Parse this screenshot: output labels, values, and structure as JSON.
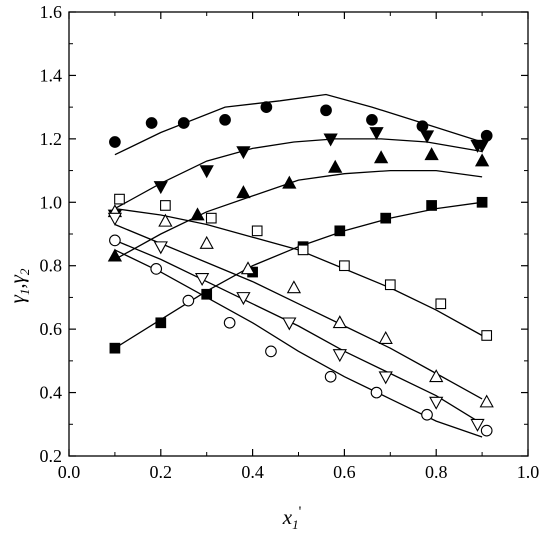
{
  "chart_data": {
    "type": "scatter",
    "xlabel": "x",
    "xlabel_sub": "1",
    "xlabel_sup": "'",
    "ylabel": "γ",
    "ylabel_sub1": "1",
    "ylabel_sep": ",",
    "ylabel_sub2": "2",
    "xlim": [
      0.0,
      1.0
    ],
    "ylim": [
      0.2,
      1.6
    ],
    "xticks": [
      "0.0",
      "0.2",
      "0.4",
      "0.6",
      "0.8",
      "1.0"
    ],
    "yticks": [
      "0.2",
      "0.4",
      "0.6",
      "0.8",
      "1.0",
      "1.2",
      "1.4",
      "1.6"
    ],
    "grid": false,
    "series": [
      {
        "marker": "circle",
        "filled": true,
        "points": [
          [
            0.1,
            1.19
          ],
          [
            0.18,
            1.25
          ],
          [
            0.25,
            1.25
          ],
          [
            0.34,
            1.26
          ],
          [
            0.43,
            1.3
          ],
          [
            0.56,
            1.29
          ],
          [
            0.66,
            1.26
          ],
          [
            0.77,
            1.24
          ],
          [
            0.91,
            1.21
          ]
        ],
        "fit": [
          [
            0.1,
            1.15
          ],
          [
            0.2,
            1.22
          ],
          [
            0.34,
            1.3
          ],
          [
            0.46,
            1.32
          ],
          [
            0.56,
            1.34
          ],
          [
            0.66,
            1.3
          ],
          [
            0.77,
            1.25
          ],
          [
            0.9,
            1.19
          ]
        ]
      },
      {
        "marker": "triangle-down",
        "filled": true,
        "points": [
          [
            0.1,
            0.96
          ],
          [
            0.2,
            1.05
          ],
          [
            0.3,
            1.1
          ],
          [
            0.38,
            1.16
          ],
          [
            0.57,
            1.2
          ],
          [
            0.67,
            1.22
          ],
          [
            0.78,
            1.21
          ],
          [
            0.89,
            1.18
          ],
          [
            0.9,
            1.18
          ]
        ],
        "fit": [
          [
            0.1,
            0.98
          ],
          [
            0.2,
            1.06
          ],
          [
            0.3,
            1.13
          ],
          [
            0.4,
            1.17
          ],
          [
            0.49,
            1.19
          ],
          [
            0.58,
            1.2
          ],
          [
            0.68,
            1.2
          ],
          [
            0.78,
            1.19
          ],
          [
            0.9,
            1.16
          ]
        ]
      },
      {
        "marker": "triangle-up",
        "filled": true,
        "points": [
          [
            0.1,
            0.83
          ],
          [
            0.28,
            0.96
          ],
          [
            0.38,
            1.03
          ],
          [
            0.48,
            1.06
          ],
          [
            0.58,
            1.11
          ],
          [
            0.68,
            1.14
          ],
          [
            0.79,
            1.15
          ],
          [
            0.9,
            1.13
          ]
        ],
        "fit": [
          [
            0.1,
            0.82
          ],
          [
            0.2,
            0.9
          ],
          [
            0.3,
            0.97
          ],
          [
            0.4,
            1.02
          ],
          [
            0.5,
            1.07
          ],
          [
            0.6,
            1.09
          ],
          [
            0.7,
            1.1
          ],
          [
            0.8,
            1.1
          ],
          [
            0.9,
            1.08
          ]
        ]
      },
      {
        "marker": "square",
        "filled": true,
        "points": [
          [
            0.1,
            0.54
          ],
          [
            0.2,
            0.62
          ],
          [
            0.3,
            0.71
          ],
          [
            0.4,
            0.78
          ],
          [
            0.51,
            0.86
          ],
          [
            0.59,
            0.91
          ],
          [
            0.69,
            0.95
          ],
          [
            0.79,
            0.99
          ],
          [
            0.9,
            1.0
          ]
        ],
        "fit": [
          [
            0.1,
            0.54
          ],
          [
            0.2,
            0.63
          ],
          [
            0.3,
            0.72
          ],
          [
            0.4,
            0.8
          ],
          [
            0.5,
            0.86
          ],
          [
            0.6,
            0.91
          ],
          [
            0.7,
            0.95
          ],
          [
            0.8,
            0.98
          ],
          [
            0.9,
            1.0
          ]
        ]
      },
      {
        "marker": "square",
        "filled": false,
        "points": [
          [
            0.11,
            1.01
          ],
          [
            0.21,
            0.99
          ],
          [
            0.31,
            0.95
          ],
          [
            0.41,
            0.91
          ],
          [
            0.51,
            0.85
          ],
          [
            0.6,
            0.8
          ],
          [
            0.7,
            0.74
          ],
          [
            0.81,
            0.68
          ],
          [
            0.91,
            0.58
          ]
        ],
        "fit": [
          [
            0.1,
            0.98
          ],
          [
            0.2,
            0.96
          ],
          [
            0.3,
            0.93
          ],
          [
            0.4,
            0.89
          ],
          [
            0.5,
            0.85
          ],
          [
            0.6,
            0.79
          ],
          [
            0.7,
            0.73
          ],
          [
            0.8,
            0.66
          ],
          [
            0.9,
            0.58
          ]
        ]
      },
      {
        "marker": "triangle-up",
        "filled": false,
        "points": [
          [
            0.1,
            0.97
          ],
          [
            0.21,
            0.94
          ],
          [
            0.3,
            0.87
          ],
          [
            0.39,
            0.79
          ],
          [
            0.49,
            0.73
          ],
          [
            0.59,
            0.62
          ],
          [
            0.69,
            0.57
          ],
          [
            0.8,
            0.45
          ],
          [
            0.91,
            0.37
          ]
        ],
        "fit": [
          [
            0.1,
            0.93
          ],
          [
            0.2,
            0.87
          ],
          [
            0.3,
            0.81
          ],
          [
            0.4,
            0.75
          ],
          [
            0.5,
            0.68
          ],
          [
            0.6,
            0.61
          ],
          [
            0.7,
            0.54
          ],
          [
            0.8,
            0.46
          ],
          [
            0.9,
            0.38
          ]
        ]
      },
      {
        "marker": "triangle-down",
        "filled": false,
        "points": [
          [
            0.1,
            0.95
          ],
          [
            0.2,
            0.86
          ],
          [
            0.29,
            0.76
          ],
          [
            0.38,
            0.7
          ],
          [
            0.48,
            0.62
          ],
          [
            0.59,
            0.52
          ],
          [
            0.69,
            0.45
          ],
          [
            0.8,
            0.37
          ],
          [
            0.89,
            0.3
          ]
        ],
        "fit": [
          [
            0.1,
            0.88
          ],
          [
            0.2,
            0.82
          ],
          [
            0.3,
            0.75
          ],
          [
            0.4,
            0.68
          ],
          [
            0.5,
            0.61
          ],
          [
            0.6,
            0.53
          ],
          [
            0.7,
            0.46
          ],
          [
            0.8,
            0.39
          ],
          [
            0.89,
            0.31
          ]
        ]
      },
      {
        "marker": "circle",
        "filled": false,
        "points": [
          [
            0.1,
            0.88
          ],
          [
            0.19,
            0.79
          ],
          [
            0.26,
            0.69
          ],
          [
            0.35,
            0.62
          ],
          [
            0.44,
            0.53
          ],
          [
            0.57,
            0.45
          ],
          [
            0.67,
            0.4
          ],
          [
            0.78,
            0.33
          ],
          [
            0.91,
            0.28
          ]
        ],
        "fit": [
          [
            0.1,
            0.85
          ],
          [
            0.2,
            0.78
          ],
          [
            0.3,
            0.7
          ],
          [
            0.4,
            0.62
          ],
          [
            0.5,
            0.53
          ],
          [
            0.6,
            0.45
          ],
          [
            0.7,
            0.38
          ],
          [
            0.8,
            0.31
          ],
          [
            0.9,
            0.26
          ]
        ]
      }
    ]
  }
}
